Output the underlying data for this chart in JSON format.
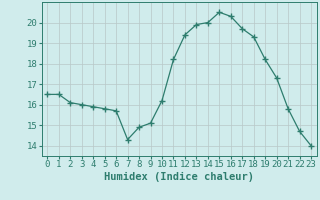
{
  "x": [
    0,
    1,
    2,
    3,
    4,
    5,
    6,
    7,
    8,
    9,
    10,
    11,
    12,
    13,
    14,
    15,
    16,
    17,
    18,
    19,
    20,
    21,
    22,
    23
  ],
  "y": [
    16.5,
    16.5,
    16.1,
    16.0,
    15.9,
    15.8,
    15.7,
    14.3,
    14.9,
    15.1,
    16.2,
    18.2,
    19.4,
    19.9,
    20.0,
    20.5,
    20.3,
    19.7,
    19.3,
    18.2,
    17.3,
    15.8,
    14.7,
    14.0
  ],
  "xlabel": "Humidex (Indice chaleur)",
  "ylim": [
    13.5,
    21.0
  ],
  "xlim": [
    -0.5,
    23.5
  ],
  "yticks": [
    14,
    15,
    16,
    17,
    18,
    19,
    20
  ],
  "xticks": [
    0,
    1,
    2,
    3,
    4,
    5,
    6,
    7,
    8,
    9,
    10,
    11,
    12,
    13,
    14,
    15,
    16,
    17,
    18,
    19,
    20,
    21,
    22,
    23
  ],
  "line_color": "#2e7d6e",
  "marker_color": "#2e7d6e",
  "bg_color": "#d0ecec",
  "grid_color": "#b8c8c8",
  "label_color": "#2e7d6e",
  "tick_color": "#2e7d6e",
  "tick_fontsize": 6.5,
  "xlabel_fontsize": 7.5
}
